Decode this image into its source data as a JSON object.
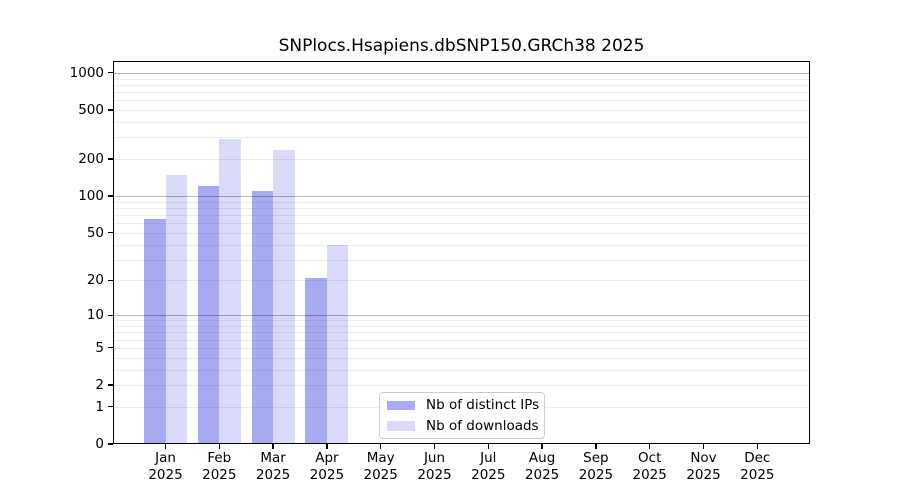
{
  "title": "SNPlocs.Hsapiens.dbSNP150.GRCh38 2025",
  "chart_data": {
    "type": "bar",
    "title": "SNPlocs.Hsapiens.dbSNP150.GRCh38 2025",
    "categories": [
      "Jan",
      "Feb",
      "Mar",
      "Apr",
      "May",
      "Jun",
      "Jul",
      "Aug",
      "Sep",
      "Oct",
      "Nov",
      "Dec"
    ],
    "category_year": "2025",
    "series": [
      {
        "name": "Nb of distinct IPs",
        "color": "#a9a9f3",
        "values": [
          65,
          122,
          110,
          21,
          null,
          null,
          null,
          null,
          null,
          null,
          null,
          null
        ]
      },
      {
        "name": "Nb of downloads",
        "color": "#d9d9f8",
        "values": [
          150,
          290,
          238,
          40,
          null,
          null,
          null,
          null,
          null,
          null,
          null,
          null
        ]
      }
    ],
    "xlabel": "",
    "ylabel": "",
    "yscale": "log1p",
    "ylim": [
      0,
      1250
    ],
    "yticks": [
      0,
      1,
      2,
      5,
      10,
      20,
      50,
      100,
      200,
      500,
      1000
    ],
    "gridlines": {
      "minor": [
        1,
        2,
        3,
        4,
        5,
        6,
        7,
        8,
        9,
        20,
        30,
        40,
        50,
        60,
        70,
        80,
        90,
        200,
        300,
        400,
        500,
        600,
        700,
        800,
        900
      ],
      "major": [
        10,
        100,
        1000
      ]
    },
    "grid": "horizontal",
    "legend_position": "inside lower center"
  },
  "legend": {
    "items": [
      {
        "label": "Nb of distinct IPs",
        "color": "#a9a9f3"
      },
      {
        "label": "Nb of downloads",
        "color": "#d9d9f8"
      }
    ]
  }
}
